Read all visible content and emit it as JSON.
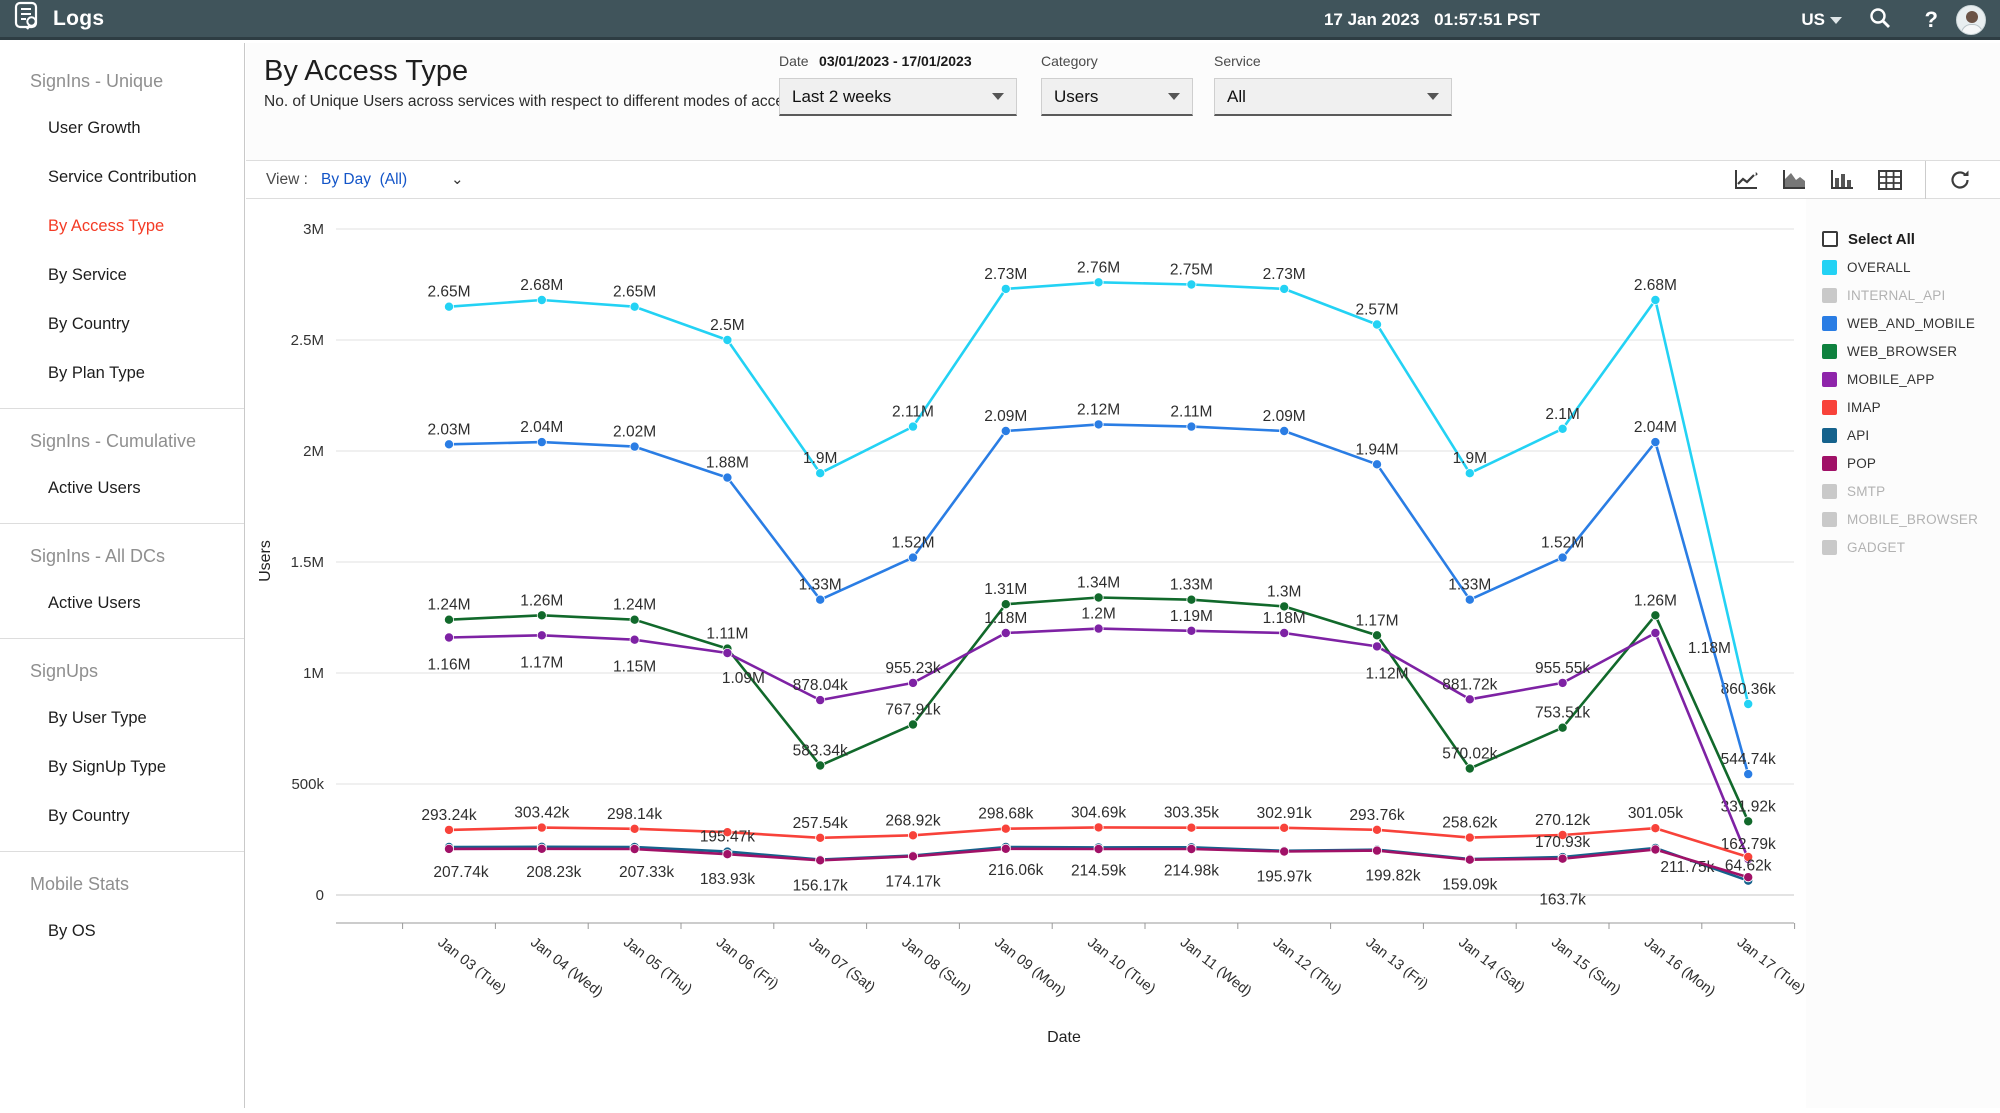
{
  "header": {
    "title": "Logs",
    "date": "17 Jan 2023",
    "time": "01:57:51 PST",
    "region": "US",
    "help": "?"
  },
  "sidebar": {
    "sections": [
      {
        "header": "SignIns - Unique",
        "items": [
          {
            "label": "User Growth",
            "active": false
          },
          {
            "label": "Service Contribution",
            "active": false
          },
          {
            "label": "By Access Type",
            "active": true
          },
          {
            "label": "By Service",
            "active": false
          },
          {
            "label": "By Country",
            "active": false
          },
          {
            "label": "By Plan Type",
            "active": false
          }
        ]
      },
      {
        "header": "SignIns - Cumulative",
        "items": [
          {
            "label": "Active Users",
            "active": false
          }
        ]
      },
      {
        "header": "SignIns - All DCs",
        "items": [
          {
            "label": "Active Users",
            "active": false
          }
        ]
      },
      {
        "header": "SignUps",
        "items": [
          {
            "label": "By User Type",
            "active": false
          },
          {
            "label": "By SignUp Type",
            "active": false
          },
          {
            "label": "By Country",
            "active": false
          }
        ]
      },
      {
        "header": "Mobile Stats",
        "items": [
          {
            "label": "By OS",
            "active": false
          }
        ]
      }
    ]
  },
  "page": {
    "title": "By Access Type",
    "subtitle": "No. of Unique Users across services with respect to different modes of access"
  },
  "filters": {
    "date": {
      "label": "Date",
      "range": "03/01/2023 - 17/01/2023",
      "value": "Last 2 weeks"
    },
    "category": {
      "label": "Category",
      "value": "Users"
    },
    "service": {
      "label": "Service",
      "value": "All"
    }
  },
  "view_bar": {
    "label": "View :",
    "value": "By Day",
    "scope": "(All)"
  },
  "chart_data": {
    "type": "line",
    "title": "By Access Type",
    "xlabel": "Date",
    "ylabel": "Users",
    "ylim": [
      0,
      3000000
    ],
    "ytick_labels": [
      "0",
      "500k",
      "1M",
      "1.5M",
      "2M",
      "2.5M",
      "3M"
    ],
    "grid": true,
    "categories": [
      "Jan 03 (Tue)",
      "Jan 04 (Wed)",
      "Jan 05 (Thu)",
      "Jan 06 (Fri)",
      "Jan 07 (Sat)",
      "Jan 08 (Sun)",
      "Jan 09 (Mon)",
      "Jan 10 (Tue)",
      "Jan 11 (Wed)",
      "Jan 12 (Thu)",
      "Jan 13 (Fri)",
      "Jan 14 (Sat)",
      "Jan 15 (Sun)",
      "Jan 16 (Mon)",
      "Jan 17 (Tue)"
    ],
    "series": [
      {
        "name": "OVERALL",
        "color": "#23d2f4",
        "values": [
          2650000,
          2680000,
          2650000,
          2500000,
          1900000,
          2110000,
          2730000,
          2760000,
          2750000,
          2730000,
          2570000,
          1900000,
          2100000,
          2680000,
          860360
        ],
        "labels": [
          "2.65M",
          "2.68M",
          "2.65M",
          "2.5M",
          "1.9M",
          "2.11M",
          "2.73M",
          "2.76M",
          "2.75M",
          "2.73M",
          "2.57M",
          "1.9M",
          "2.1M",
          "2.68M",
          "860.36k"
        ]
      },
      {
        "name": "WEB_AND_MOBILE",
        "color": "#2a7de4",
        "values": [
          2030000,
          2040000,
          2020000,
          1880000,
          1330000,
          1520000,
          2090000,
          2120000,
          2110000,
          2090000,
          1940000,
          1330000,
          1520000,
          2040000,
          544740
        ],
        "labels": [
          "2.03M",
          "2.04M",
          "2.02M",
          "1.88M",
          "1.33M",
          "1.52M",
          "2.09M",
          "2.12M",
          "2.11M",
          "2.09M",
          "1.94M",
          "1.33M",
          "1.52M",
          "2.04M",
          "544.74k"
        ]
      },
      {
        "name": "WEB_BROWSER",
        "color": "#11692b",
        "values": [
          1240000,
          1260000,
          1240000,
          1110000,
          583340,
          767910,
          1310000,
          1340000,
          1330000,
          1300000,
          1170000,
          570020,
          753510,
          1260000,
          331920
        ],
        "labels": [
          "1.24M",
          "1.26M",
          "1.24M",
          "1.11M",
          "583.34k",
          "767.91k",
          "1.31M",
          "1.34M",
          "1.33M",
          "1.3M",
          "1.17M",
          "570.02k",
          "753.51k",
          "1.26M",
          "331.92k"
        ]
      },
      {
        "name": "MOBILE_APP",
        "color": "#7e22a4",
        "values": [
          1160000,
          1170000,
          1150000,
          1090000,
          878040,
          955230,
          1180000,
          1200000,
          1190000,
          1180000,
          1120000,
          881720,
          955550,
          1180000,
          162790
        ],
        "labels": [
          "1.16M",
          "1.17M",
          "1.15M",
          "1.09M",
          "878.04k",
          "955.23k",
          "1.18M",
          "1.2M",
          "1.19M",
          "1.18M",
          "1.12M",
          "881.72k",
          "955.55k",
          "1.18M",
          "162.79k"
        ]
      },
      {
        "name": "IMAP",
        "color": "#f8423a",
        "values": [
          293240,
          303420,
          298140,
          283000,
          257540,
          268920,
          298680,
          304690,
          303350,
          302910,
          293760,
          258620,
          270120,
          301050,
          171000
        ],
        "labels": [
          "293.24k",
          "303.42k",
          "298.14k",
          null,
          "257.54k",
          "268.92k",
          "298.68k",
          "304.69k",
          "303.35k",
          "302.91k",
          "293.76k",
          "258.62k",
          "270.12k",
          "301.05k",
          null
        ]
      },
      {
        "name": "API",
        "color": "#15628c",
        "values": [
          216000,
          217000,
          216000,
          195470,
          160000,
          178000,
          216060,
          214590,
          214980,
          199000,
          204000,
          162000,
          170930,
          211750,
          64620
        ],
        "labels": [
          null,
          null,
          null,
          "195.47k",
          null,
          null,
          "216.06k",
          "214.59k",
          "214.98k",
          null,
          null,
          null,
          "170.93k",
          "211.75k",
          "64.62k"
        ]
      },
      {
        "name": "POP",
        "color": "#a01167",
        "values": [
          207740,
          208230,
          207330,
          183930,
          156170,
          174170,
          208000,
          207000,
          207000,
          195970,
          199820,
          159090,
          163700,
          205000,
          80000
        ],
        "labels": [
          "207.74k",
          "208.23k",
          "207.33k",
          "183.93k",
          "156.17k",
          "174.17k",
          null,
          null,
          null,
          "195.97k",
          "199.82k",
          "159.09k",
          "163.7k",
          null,
          null
        ]
      }
    ],
    "legend": {
      "position": "right",
      "select_all": "Select All",
      "items": [
        {
          "name": "OVERALL",
          "color": "#23d2f4",
          "enabled": true
        },
        {
          "name": "INTERNAL_API",
          "color": "#c9c9c9",
          "enabled": false
        },
        {
          "name": "WEB_AND_MOBILE",
          "color": "#2a7de4",
          "enabled": true
        },
        {
          "name": "WEB_BROWSER",
          "color": "#0e813e",
          "enabled": true
        },
        {
          "name": "MOBILE_APP",
          "color": "#8e24aa",
          "enabled": true
        },
        {
          "name": "IMAP",
          "color": "#f8423a",
          "enabled": true
        },
        {
          "name": "API",
          "color": "#15628c",
          "enabled": true
        },
        {
          "name": "POP",
          "color": "#a01167",
          "enabled": true
        },
        {
          "name": "SMTP",
          "color": "#c9c9c9",
          "enabled": false
        },
        {
          "name": "MOBILE_BROWSER",
          "color": "#c9c9c9",
          "enabled": false
        },
        {
          "name": "GADGET",
          "color": "#c9c9c9",
          "enabled": false
        }
      ]
    }
  }
}
